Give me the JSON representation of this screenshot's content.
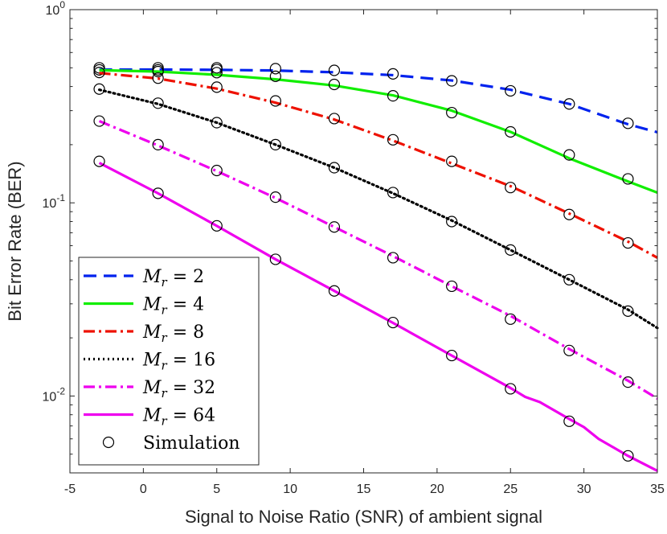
{
  "chart_data": {
    "type": "line",
    "title": "",
    "xlabel": "Signal to Noise Ratio (SNR) of ambient signal",
    "ylabel": "Bit Error Rate (BER)",
    "xlim": [
      -5,
      35
    ],
    "ylim": [
      0.004,
      1
    ],
    "yscale": "log",
    "grid": false,
    "legend_position": "bottom-left",
    "x_ticks": [
      -5,
      0,
      5,
      10,
      15,
      20,
      25,
      30,
      35
    ],
    "x_tick_labels": [
      "-5",
      "0",
      "5",
      "10",
      "15",
      "20",
      "25",
      "30",
      "35"
    ],
    "y_ticks": [
      {
        "value": 1,
        "base": "10",
        "exp": "0"
      },
      {
        "value": 0.1,
        "base": "10",
        "exp": "-1"
      },
      {
        "value": 0.01,
        "base": "10",
        "exp": "-2"
      }
    ],
    "series": [
      {
        "name": "M_r = 2",
        "var": "M",
        "sub": "r",
        "rhs": "= 2",
        "color": "#0022ee",
        "dash": "16,9",
        "x": [
          -3,
          1,
          5,
          9,
          13,
          17,
          21,
          25,
          29,
          33,
          35
        ],
        "values": [
          0.49,
          0.49,
          0.488,
          0.484,
          0.474,
          0.458,
          0.43,
          0.385,
          0.325,
          0.255,
          0.232
        ],
        "sim_x": [
          -3,
          -3,
          1,
          1,
          5,
          5,
          9,
          13,
          17,
          21,
          25,
          29,
          33
        ],
        "sim_values": [
          0.5,
          0.488,
          0.5,
          0.488,
          0.5,
          0.49,
          0.495,
          0.485,
          0.465,
          0.428,
          0.38,
          0.325,
          0.258
        ]
      },
      {
        "name": "M_r = 4",
        "var": "M",
        "sub": "r",
        "rhs": "= 4",
        "color": "#11ee00",
        "dash": "",
        "x": [
          -3,
          1,
          5,
          9,
          13,
          17,
          21,
          25,
          29,
          33,
          35
        ],
        "values": [
          0.486,
          0.478,
          0.46,
          0.436,
          0.405,
          0.36,
          0.3,
          0.233,
          0.17,
          0.129,
          0.113
        ],
        "sim_x": [
          1,
          5,
          9,
          13,
          17,
          21,
          25,
          29,
          33
        ],
        "sim_values": [
          0.478,
          0.472,
          0.452,
          0.41,
          0.358,
          0.293,
          0.233,
          0.177,
          0.133
        ]
      },
      {
        "name": "M_r = 8",
        "var": "M",
        "sub": "r",
        "rhs": "= 8",
        "color": "#ee1100",
        "dash": "14,5,3,5",
        "x": [
          -3,
          1,
          5,
          9,
          13,
          17,
          21,
          25,
          29,
          33,
          35
        ],
        "values": [
          0.47,
          0.44,
          0.39,
          0.33,
          0.27,
          0.21,
          0.16,
          0.122,
          0.088,
          0.063,
          0.052
        ],
        "sim_x": [
          -3,
          1,
          5,
          9,
          13,
          17,
          21,
          25,
          29,
          33
        ],
        "sim_values": [
          0.473,
          0.442,
          0.397,
          0.337,
          0.273,
          0.212,
          0.164,
          0.12,
          0.087,
          0.062
        ]
      },
      {
        "name": "M_r = 16",
        "var": "M",
        "sub": "r",
        "rhs": "= 16",
        "color": "#000000",
        "dash": "2,4",
        "x": [
          -3,
          1,
          5,
          9,
          13,
          17,
          21,
          25,
          29,
          33,
          35
        ],
        "values": [
          0.385,
          0.325,
          0.26,
          0.2,
          0.152,
          0.112,
          0.081,
          0.057,
          0.04,
          0.028,
          0.0225
        ],
        "sim_x": [
          -3,
          1,
          5,
          9,
          13,
          17,
          21,
          25,
          29,
          33
        ],
        "sim_values": [
          0.388,
          0.328,
          0.26,
          0.2,
          0.152,
          0.113,
          0.08,
          0.057,
          0.04,
          0.0275
        ]
      },
      {
        "name": "M_r = 32",
        "var": "M",
        "sub": "r",
        "rhs": "= 32",
        "color": "#ee00ee",
        "dash": "14,5,3,5",
        "x": [
          -3,
          1,
          5,
          9,
          13,
          17,
          21,
          25,
          29,
          33,
          35
        ],
        "values": [
          0.265,
          0.198,
          0.146,
          0.106,
          0.075,
          0.053,
          0.037,
          0.026,
          0.0175,
          0.012,
          0.0097
        ],
        "sim_x": [
          -3,
          1,
          5,
          9,
          13,
          17,
          21,
          25,
          29,
          33
        ],
        "sim_values": [
          0.265,
          0.2,
          0.147,
          0.107,
          0.075,
          0.052,
          0.037,
          0.025,
          0.0172,
          0.0118
        ]
      },
      {
        "name": "M_r = 64",
        "var": "M",
        "sub": "r",
        "rhs": "= 64",
        "color": "#ee00ee",
        "dash": "",
        "x": [
          -3,
          1,
          5,
          9,
          13,
          17,
          21,
          25,
          26,
          27,
          29,
          30,
          31,
          33,
          35
        ],
        "values": [
          0.161,
          0.112,
          0.076,
          0.051,
          0.035,
          0.0239,
          0.0162,
          0.011,
          0.0099,
          0.0093,
          0.0076,
          0.0069,
          0.006,
          0.0049,
          0.0041
        ],
        "sim_x": [
          -3,
          1,
          5,
          9,
          13,
          17,
          21,
          25,
          29,
          33
        ],
        "sim_values": [
          0.164,
          0.112,
          0.076,
          0.051,
          0.035,
          0.024,
          0.0162,
          0.0109,
          0.0074,
          0.0049
        ]
      }
    ],
    "legend": {
      "simulation_label": "Simulation"
    }
  }
}
